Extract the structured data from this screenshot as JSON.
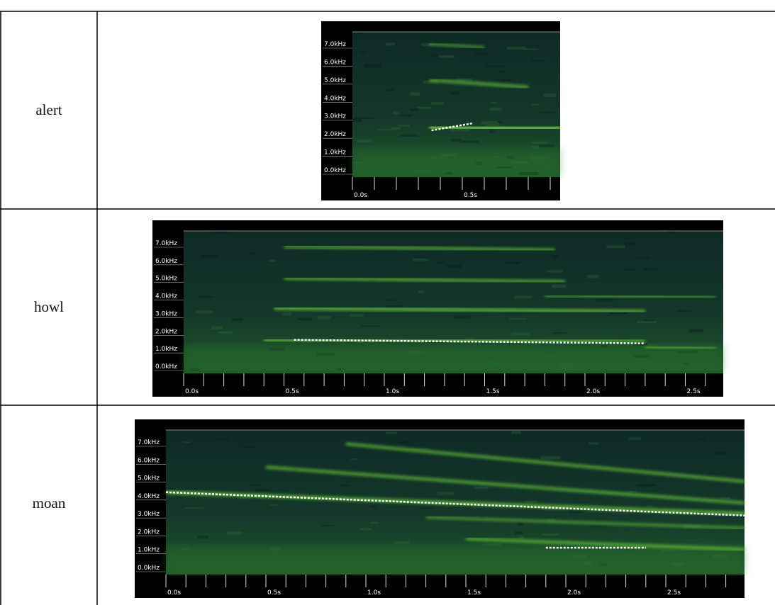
{
  "table": {
    "rows": [
      {
        "label": "alert",
        "spectrogram": {
          "frequency_labels": [
            "7.0kHz",
            "6.0kHz",
            "5.0kHz",
            "4.0kHz",
            "3.0kHz",
            "2.0kHz",
            "1.0kHz",
            "0.0kHz"
          ],
          "time_labels": [
            "0.0s",
            "0.5s"
          ]
        }
      },
      {
        "label": "howl",
        "spectrogram": {
          "frequency_labels": [
            "7.0kHz",
            "6.0kHz",
            "5.0kHz",
            "4.0kHz",
            "3.0kHz",
            "2.0kHz",
            "1.0kHz",
            "0.0kHz"
          ],
          "time_labels": [
            "0.0s",
            "0.5s",
            "1.0s",
            "1.5s",
            "2.0s",
            "2.5s"
          ]
        }
      },
      {
        "label": "moan",
        "spectrogram": {
          "frequency_labels": [
            "7.0kHz",
            "6.0kHz",
            "5.0kHz",
            "4.0kHz",
            "3.0kHz",
            "2.0kHz",
            "1.0kHz",
            "0.0kHz"
          ],
          "time_labels": [
            "0.0s",
            "0.5s",
            "1.0s",
            "1.5s",
            "2.0s",
            "2.5s"
          ]
        }
      }
    ]
  }
}
